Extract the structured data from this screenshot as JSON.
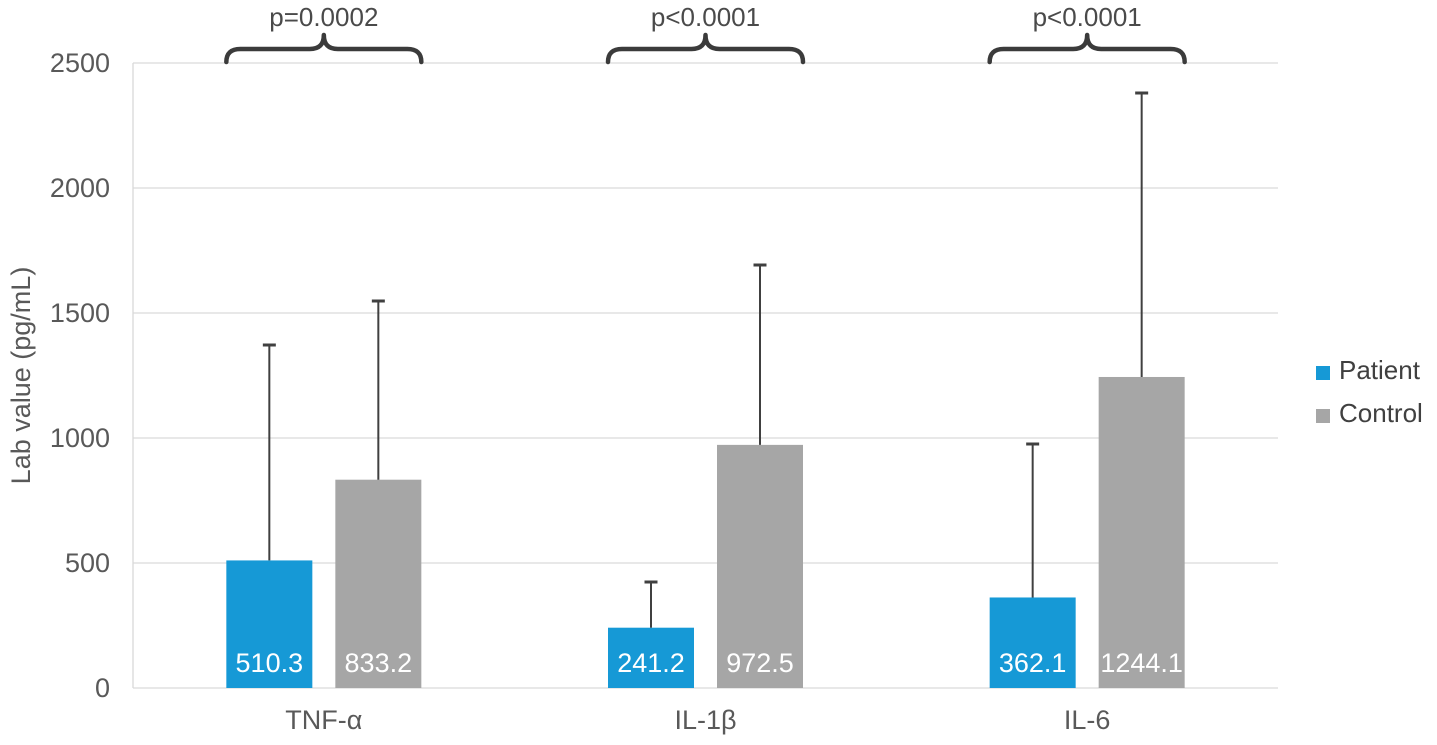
{
  "chart_data": {
    "type": "bar",
    "title": "",
    "categories": [
      "TNF-α",
      "IL-1β",
      "IL-6"
    ],
    "series": [
      {
        "name": "Patient",
        "color": "#1699D6",
        "values": [
          510.3,
          241.2,
          362.1
        ],
        "error_upper": [
          1372,
          424,
          976
        ]
      },
      {
        "name": "Control",
        "color": "#A6A6A6",
        "values": [
          833.2,
          972.5,
          1244.1
        ],
        "error_upper": [
          1548,
          1692,
          2380
        ]
      }
    ],
    "data_labels": [
      [
        "510.3",
        "241.2",
        "362.1"
      ],
      [
        "833.2",
        "972.5",
        "1244.1"
      ]
    ],
    "annotations": [
      {
        "group": 0,
        "text": "p=0.0002"
      },
      {
        "group": 1,
        "text": "p<0.0001"
      },
      {
        "group": 2,
        "text": "p<0.0001"
      }
    ],
    "xlabel": "",
    "ylabel": "Lab value (pg/mL)",
    "ylim": [
      0,
      2500
    ],
    "yticks": [
      "0",
      "500",
      "1000",
      "1500",
      "2000",
      "2500"
    ],
    "grid": true,
    "legend_position": "right",
    "legend_items": [
      "Patient",
      "Control"
    ]
  },
  "style": {
    "background": "#ffffff",
    "gridline_color": "#D9D9D9",
    "axis_line_color": "#D9D9D9",
    "tick_label_color": "#595959",
    "category_label_color": "#595959",
    "axis_title_color": "#595959",
    "data_label_color": "#FFFFFF",
    "error_bar_color": "#404040",
    "brace_color": "#3B3B3B",
    "annotation_text_color": "#4A4A4A",
    "legend_text_color": "#404040"
  }
}
